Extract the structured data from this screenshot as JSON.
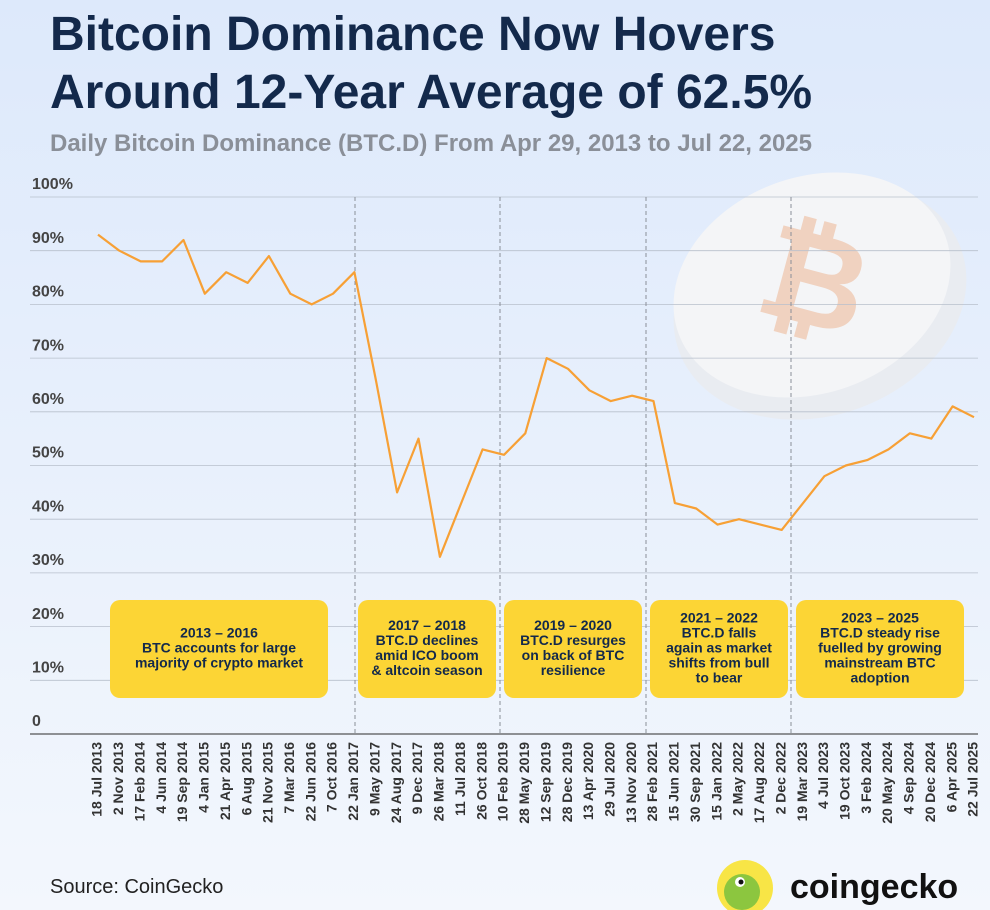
{
  "chart_data": {
    "type": "line",
    "title": "Bitcoin Dominance Now Hovers Around 12-Year Average of 62.5%",
    "subtitle": "Daily Bitcoin Dominance (BTC.D) From Apr 29, 2013 to Jul 22, 2025",
    "categories": [
      "18 Jul 2013",
      "2 Nov 2013",
      "17 Feb 2014",
      "4 Jun 2014",
      "19 Sep 2014",
      "4 Jan 2015",
      "21 Apr 2015",
      "6 Aug 2015",
      "21 Nov 2015",
      "7 Mar 2016",
      "22 Jun 2016",
      "7 Oct 2016",
      "22 Jan 2017",
      "9 May 2017",
      "24 Aug 2017",
      "9 Dec 2017",
      "26 Mar 2018",
      "11 Jul 2018",
      "26 Oct 2018",
      "10 Feb 2019",
      "28 May 2019",
      "12 Sep 2019",
      "28 Dec 2019",
      "13 Apr 2020",
      "29 Jul 2020",
      "13 Nov 2020",
      "28 Feb 2021",
      "15 Jun 2021",
      "30 Sep 2021",
      "15 Jan 2022",
      "2 May 2022",
      "17 Aug 2022",
      "2 Dec 2022",
      "19 Mar 2023",
      "4 Jul 2023",
      "19 Oct 2023",
      "3 Feb 2024",
      "20 May 2024",
      "4 Sep 2024",
      "20 Dec 2024",
      "6 Apr 2025",
      "22 Jul 2025"
    ],
    "values": [
      93,
      90,
      88,
      88,
      92,
      82,
      86,
      84,
      89,
      82,
      80,
      82,
      86,
      66,
      45,
      55,
      33,
      43,
      53,
      52,
      56,
      70,
      68,
      64,
      62,
      63,
      62,
      43,
      42,
      39,
      40,
      39,
      38,
      43,
      48,
      50,
      51,
      53,
      56,
      55,
      61,
      59
    ],
    "color": "#f7a035",
    "ylim": [
      0,
      100
    ],
    "yticks": [
      0,
      {
        "value": 10,
        "label": "10%"
      },
      {
        "value": 20,
        "label": "20%"
      },
      {
        "value": 30,
        "label": "30%"
      },
      {
        "value": 40,
        "label": "40%"
      },
      {
        "value": 50,
        "label": "50%"
      },
      {
        "value": 60,
        "label": "60%"
      },
      {
        "value": 70,
        "label": "70%"
      },
      {
        "value": 80,
        "label": "80%"
      },
      {
        "value": 90,
        "label": "90%"
      },
      {
        "value": 100,
        "label": "100%"
      }
    ],
    "grid": true,
    "annotations": [
      {
        "title": "2013 – 2016",
        "text": [
          "BTC accounts for large",
          "majority of crypto market"
        ]
      },
      {
        "title": "2017 – 2018",
        "text": [
          "BTC.D declines",
          "amid ICO boom",
          "& altcoin season"
        ]
      },
      {
        "title": "2019 – 2020",
        "text": [
          "BTC.D resurges",
          "on back of BTC",
          "resilience"
        ]
      },
      {
        "title": "2021 – 2022",
        "text": [
          "BTC.D falls",
          "again as market",
          "shifts from bull",
          "to bear"
        ]
      },
      {
        "title": "2023 – 2025",
        "text": [
          "BTC.D steady rise",
          "fuelled by growing",
          "mainstream BTC",
          "adoption"
        ]
      }
    ],
    "source": "Source: CoinGecko",
    "brand": "coingecko"
  }
}
